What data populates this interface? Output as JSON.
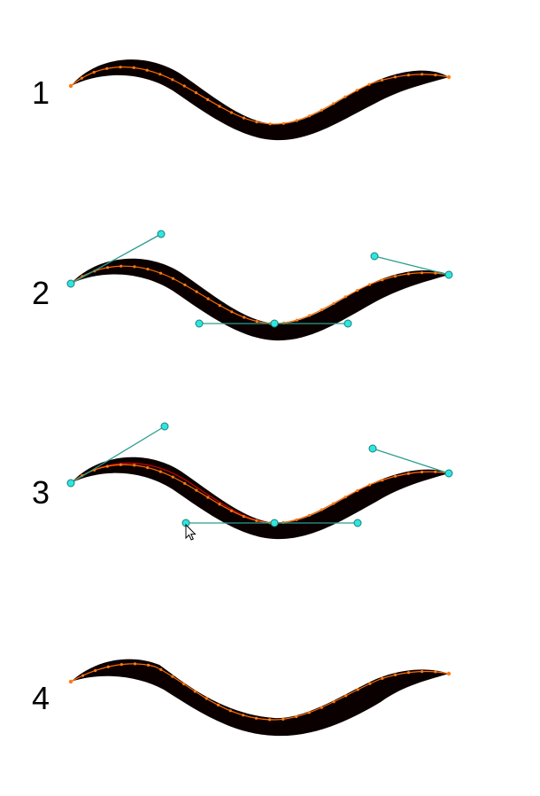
{
  "steps": [
    {
      "label": "1",
      "handles": false
    },
    {
      "label": "2",
      "handles": true
    },
    {
      "label": "3",
      "handles": true,
      "cursor": true
    },
    {
      "label": "4",
      "handles": false
    }
  ],
  "colors": {
    "stroke_fill": "#0a0000",
    "centerline": "#ff6a00",
    "point": "#ff7a10",
    "deformed_line": "#cc0000",
    "handle_line": "#2a9d8f",
    "handle_point": "#2ee6df"
  },
  "icons": {
    "cursor": "arrow-cursor-icon"
  }
}
